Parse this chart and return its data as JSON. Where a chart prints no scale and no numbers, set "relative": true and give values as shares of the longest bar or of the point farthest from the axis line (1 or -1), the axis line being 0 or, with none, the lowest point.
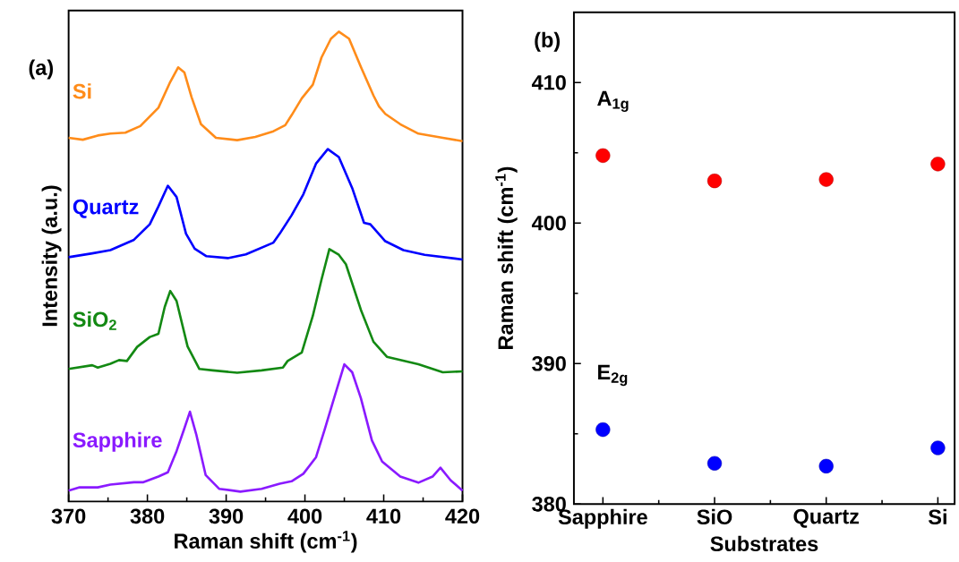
{
  "chart_data": [
    {
      "type": "line",
      "xlabel": "Raman shift (cm$^{-1}$)",
      "ylabel": "Intensity (a.u.)",
      "annotations": [
        "(a)"
      ],
      "relative": true,
      "xlim": [
        370,
        420
      ],
      "xticks": [
        370,
        380,
        390,
        400,
        410,
        420
      ],
      "tick_labels": "x",
      "series": [
        {
          "name": "Si",
          "color": "#ff8c1a",
          "x": [
            370,
            371.8,
            373.7,
            375.3,
            377.2,
            379.1,
            381.4,
            382.9,
            383.9,
            384.7,
            385.6,
            386.8,
            388.7,
            391.4,
            393.7,
            396.0,
            397.5,
            398.3,
            399.6,
            401.0,
            402.1,
            403.3,
            404.3,
            405.6,
            407.1,
            408.7,
            409.4,
            410.2,
            412.1,
            414.4,
            417.5,
            420
          ],
          "values": [
            0.774,
            0.77,
            0.779,
            0.783,
            0.785,
            0.799,
            0.838,
            0.893,
            0.924,
            0.913,
            0.861,
            0.803,
            0.774,
            0.769,
            0.776,
            0.788,
            0.801,
            0.822,
            0.858,
            0.887,
            0.945,
            0.985,
            1.0,
            0.985,
            0.925,
            0.864,
            0.841,
            0.825,
            0.803,
            0.783,
            0.774,
            0.767
          ]
        },
        {
          "name": "Quartz",
          "color": "#0000ff",
          "x": [
            370,
            373.0,
            375.3,
            378.3,
            380.3,
            381.4,
            382.6,
            383.7,
            384.9,
            386.0,
            387.5,
            390.2,
            392.5,
            396.0,
            396.8,
            398.3,
            399.8,
            401.4,
            402.9,
            404.3,
            406.0,
            407.5,
            408.3,
            410.2,
            412.5,
            415.2,
            420
          ],
          "values": [
            0.52,
            0.528,
            0.535,
            0.557,
            0.59,
            0.628,
            0.672,
            0.648,
            0.57,
            0.538,
            0.522,
            0.518,
            0.526,
            0.551,
            0.57,
            0.609,
            0.654,
            0.719,
            0.75,
            0.733,
            0.667,
            0.593,
            0.59,
            0.554,
            0.535,
            0.525,
            0.515
          ]
        },
        {
          "name": "SiO$_{2}$",
          "color": "#138913",
          "x": [
            370,
            373.0,
            373.7,
            375.3,
            376.4,
            377.4,
            378.7,
            380.3,
            381.4,
            382.2,
            382.9,
            383.7,
            385.1,
            386.6,
            388.3,
            391.4,
            394.5,
            397.2,
            397.8,
            399.6,
            401.0,
            402.1,
            403.1,
            404.3,
            405.2,
            407.1,
            408.7,
            410.4,
            412.1,
            414.4,
            417.5,
            420
          ],
          "values": [
            0.282,
            0.29,
            0.285,
            0.293,
            0.301,
            0.299,
            0.329,
            0.35,
            0.357,
            0.414,
            0.448,
            0.427,
            0.33,
            0.282,
            0.279,
            0.274,
            0.279,
            0.285,
            0.299,
            0.317,
            0.395,
            0.472,
            0.537,
            0.525,
            0.505,
            0.408,
            0.34,
            0.308,
            0.301,
            0.292,
            0.275,
            0.277
          ]
        },
        {
          "name": "Sapphire",
          "color": "#8a1aff",
          "x": [
            370,
            371.4,
            373.7,
            375.3,
            378.3,
            379.5,
            381.4,
            382.6,
            383.7,
            384.7,
            385.4,
            386.2,
            387.4,
            389.1,
            391.8,
            394.5,
            396.8,
            398.3,
            399.8,
            401.4,
            402.5,
            403.7,
            405.0,
            406.0,
            407.1,
            408.5,
            409.8,
            412.1,
            414.4,
            416.2,
            417.2,
            418.5,
            420
          ],
          "values": [
            0.023,
            0.03,
            0.03,
            0.036,
            0.041,
            0.041,
            0.053,
            0.062,
            0.107,
            0.156,
            0.191,
            0.143,
            0.056,
            0.027,
            0.021,
            0.027,
            0.038,
            0.043,
            0.059,
            0.094,
            0.153,
            0.22,
            0.292,
            0.275,
            0.22,
            0.13,
            0.085,
            0.053,
            0.04,
            0.053,
            0.072,
            0.045,
            0.023
          ]
        }
      ]
    },
    {
      "type": "scatter",
      "xlabel": "Substrates",
      "ylabel": "Raman shift (cm$^{-1}$)",
      "annotations": [
        "(b)"
      ],
      "categories": [
        "Sapphire",
        "SiO",
        "Quartz",
        "Si"
      ],
      "ylim": [
        380,
        415
      ],
      "yticks": [
        380,
        390,
        400,
        410
      ],
      "marker": "circle",
      "series": [
        {
          "name": "A$_{1g}$",
          "color": "#ff0000",
          "values": [
            404.8,
            403.0,
            403.1,
            404.2
          ]
        },
        {
          "name": "E$_{2g}$",
          "color": "#0000ff",
          "values": [
            385.3,
            382.9,
            382.7,
            384.0
          ]
        }
      ]
    }
  ]
}
